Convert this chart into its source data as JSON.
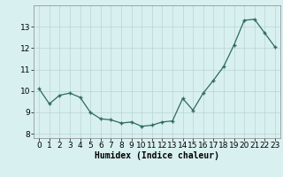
{
  "x": [
    0,
    1,
    2,
    3,
    4,
    5,
    6,
    7,
    8,
    9,
    10,
    11,
    12,
    13,
    14,
    15,
    16,
    17,
    18,
    19,
    20,
    21,
    22,
    23
  ],
  "y": [
    10.1,
    9.4,
    9.8,
    9.9,
    9.7,
    9.0,
    8.7,
    8.65,
    8.5,
    8.55,
    8.35,
    8.4,
    8.55,
    8.6,
    9.65,
    9.1,
    9.9,
    10.5,
    11.15,
    12.15,
    13.3,
    13.35,
    12.7,
    12.05
  ],
  "xlabel": "Humidex (Indice chaleur)",
  "ylim": [
    7.8,
    14.0
  ],
  "xlim": [
    -0.5,
    23.5
  ],
  "yticks": [
    8,
    9,
    10,
    11,
    12,
    13
  ],
  "xticks": [
    0,
    1,
    2,
    3,
    4,
    5,
    6,
    7,
    8,
    9,
    10,
    11,
    12,
    13,
    14,
    15,
    16,
    17,
    18,
    19,
    20,
    21,
    22,
    23
  ],
  "line_color": "#2d6b5e",
  "marker": "+",
  "marker_size": 3,
  "bg_color": "#d9f0f0",
  "grid_color": "#b8d4d4",
  "xlabel_fontsize": 7,
  "tick_fontsize": 6.5,
  "linewidth": 0.9
}
